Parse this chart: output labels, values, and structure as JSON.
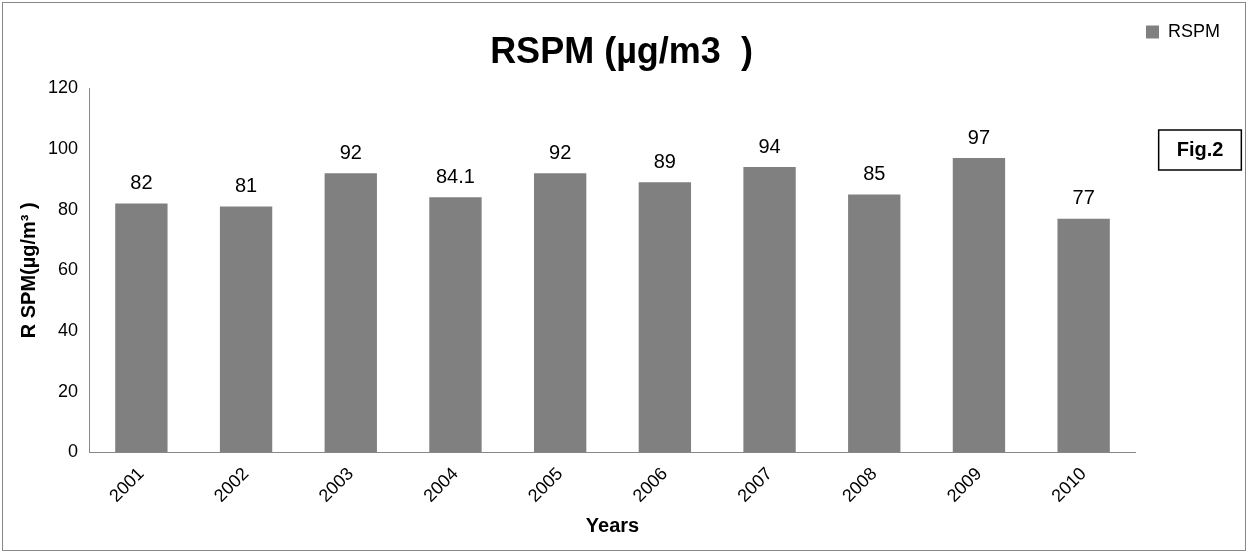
{
  "chart_data": {
    "type": "bar",
    "title": "RSPM (µg/m3  )",
    "xlabel": "Years",
    "ylabel": "R SPM(µg/m³ )",
    "categories": [
      "2001",
      "2002",
      "2003",
      "2004",
      "2005",
      "2006",
      "2007",
      "2008",
      "2009",
      "2010"
    ],
    "series": [
      {
        "name": "RSPM",
        "color": "#808080",
        "values": [
          82,
          81,
          92,
          84.1,
          92,
          89,
          94,
          85,
          97,
          77
        ]
      }
    ],
    "ylim": [
      0,
      120
    ],
    "yticks": [
      0,
      20,
      40,
      60,
      80,
      100,
      120
    ],
    "data_labels": true,
    "legend": "top right",
    "annotations": [
      "Fig.2"
    ]
  }
}
